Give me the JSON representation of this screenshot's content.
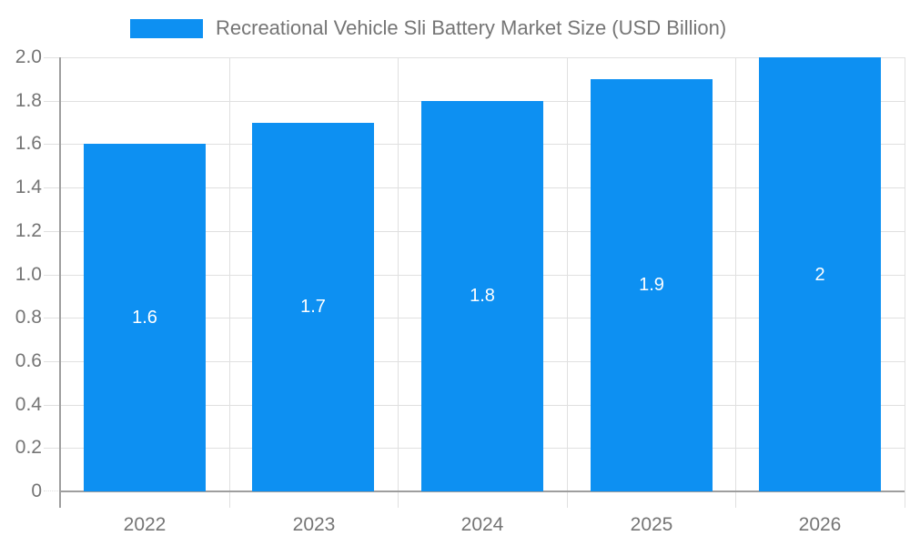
{
  "colors": {
    "bar": "#0d90f2",
    "text": "#757575",
    "axis": "#9e9e9e",
    "grid": "#e0e0e0",
    "bar_label": "#ffffff",
    "background": "#ffffff"
  },
  "legend": {
    "swatch_color": "#0d90f2",
    "label": "Recreational Vehicle Sli Battery Market Size (USD Billion)"
  },
  "chart_data": {
    "type": "bar",
    "title": "Recreational Vehicle Sli Battery Market Size (USD Billion)",
    "categories": [
      "2022",
      "2023",
      "2024",
      "2025",
      "2026"
    ],
    "values": [
      1.6,
      1.7,
      1.8,
      1.9,
      2
    ],
    "value_labels": [
      "1.6",
      "1.7",
      "1.8",
      "1.9",
      "2"
    ],
    "xlabel": "",
    "ylabel": "",
    "ylim": [
      0,
      2.0
    ],
    "ytick_step": 0.2,
    "ytick_labels": [
      "0",
      "0.2",
      "0.4",
      "0.6",
      "0.8",
      "1.0",
      "1.2",
      "1.4",
      "1.6",
      "1.8",
      "2.0"
    ],
    "grid": true,
    "legend_position": "top",
    "bar_label_position": "center",
    "bar_label_color": "#ffffff"
  }
}
